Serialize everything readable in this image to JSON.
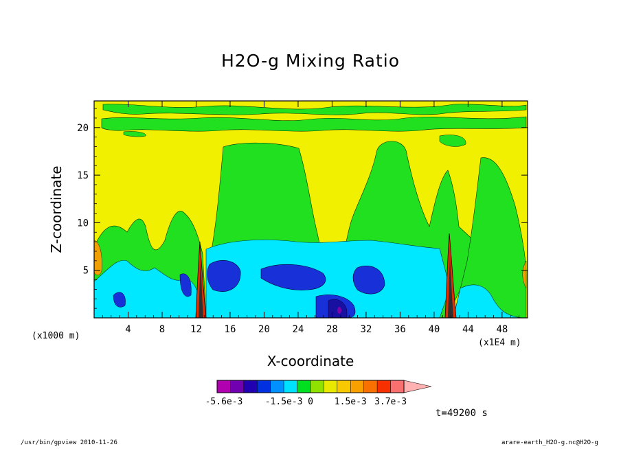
{
  "chart_data": {
    "type": "heatmap",
    "title": "H2O-g Mixing Ratio",
    "xlabel": "X-coordinate",
    "ylabel": "Z-coordinate",
    "x_unit_label": "(x1000 m)",
    "x_scale_label": "(x1E4 m)",
    "xlim": [
      0,
      51
    ],
    "ylim": [
      0,
      22.8
    ],
    "x_ticks": [
      4,
      8,
      12,
      16,
      20,
      24,
      28,
      32,
      36,
      40,
      44,
      48
    ],
    "y_ticks": [
      5,
      10,
      15,
      20
    ],
    "colorbar": {
      "labels": [
        "-5.6e-3",
        "-1.5e-3",
        "0",
        "1.5e-3",
        "3.7e-3"
      ],
      "levels": [
        -5.6,
        -3.5,
        -2.5,
        -2.0,
        -1.5,
        -1.0,
        -0.5,
        0,
        0.5,
        1.0,
        1.5,
        2.0,
        2.5,
        3.7
      ],
      "colors": [
        "#b000b0",
        "#7000b0",
        "#2000b0",
        "#0030e0",
        "#0090ff",
        "#00e0ff",
        "#00e020",
        "#90e000",
        "#e8e800",
        "#f8c800",
        "#f8a000",
        "#f87000",
        "#f83000",
        "#f87070",
        "#ffb0b0"
      ]
    },
    "region_colors": {
      "background": "#f0f000",
      "green": "#20e020",
      "cyan": "#00e8ff",
      "blue": "#1830d8",
      "darkblue": "#1810a0",
      "purple": "#8000a8",
      "orange": "#f0a000",
      "red": "#e03000"
    }
  },
  "time_label": "t=49200 s",
  "footer_left": "/usr/bin/gpview  2010-11-26",
  "footer_right": "arare-earth_H2O-g.nc@H2O-g"
}
